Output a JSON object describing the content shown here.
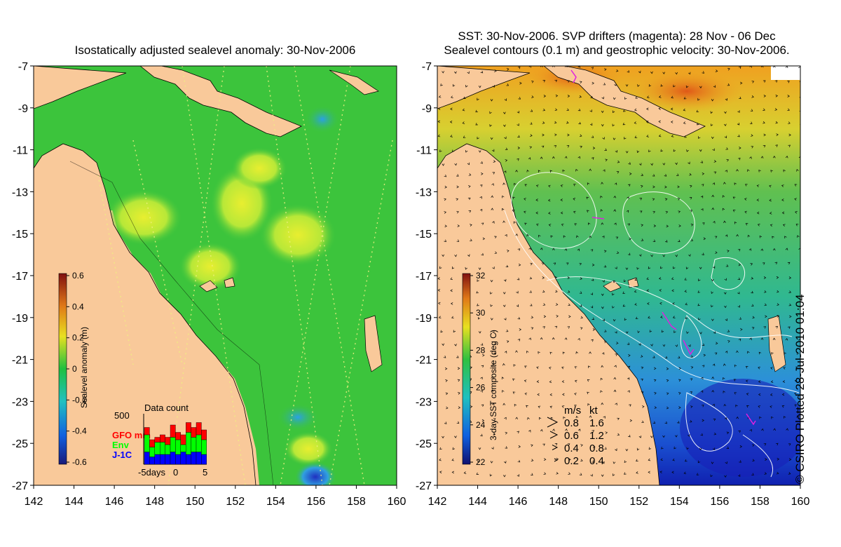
{
  "left_panel": {
    "title": "Isostatically adjusted sealevel anomaly: 30-Nov-2006",
    "y_ticks": [
      "-7",
      "-9",
      "-11",
      "-13",
      "-15",
      "-17",
      "-19",
      "-21",
      "-23",
      "-25",
      "-27"
    ],
    "x_ticks": [
      "142",
      "144",
      "146",
      "148",
      "150",
      "152",
      "154",
      "156",
      "158",
      "160"
    ],
    "colorbar": {
      "label": "Sealevel anomaly (m)",
      "ticks": [
        "0.6",
        "0.4",
        "0.2",
        "0",
        "-0.2",
        "-0.4",
        "-0.6"
      ]
    },
    "data_count": {
      "title": "Data count",
      "max_label": "500",
      "legend": [
        {
          "label": "GFO mm",
          "color": "#ff0000"
        },
        {
          "label": "Env",
          "color": "#00ff00"
        },
        {
          "label": "J-1C",
          "color": "#0000ff"
        }
      ],
      "x_labels": [
        "-5days",
        "0",
        "5"
      ],
      "bars": [
        {
          "j1c": 0.25,
          "env": 0.35,
          "gfo": 0.15
        },
        {
          "j1c": 0.15,
          "env": 0.2,
          "gfo": 0.15
        },
        {
          "j1c": 0.2,
          "env": 0.25,
          "gfo": 0.1
        },
        {
          "j1c": 0.2,
          "env": 0.25,
          "gfo": 0.15
        },
        {
          "j1c": 0.2,
          "env": 0.2,
          "gfo": 0.15
        },
        {
          "j1c": 0.25,
          "env": 0.3,
          "gfo": 0.25
        },
        {
          "j1c": 0.2,
          "env": 0.3,
          "gfo": 0.15
        },
        {
          "j1c": 0.25,
          "env": 0.15,
          "gfo": 0.2
        },
        {
          "j1c": 0.2,
          "env": 0.45,
          "gfo": 0.2
        },
        {
          "j1c": 0.25,
          "env": 0.3,
          "gfo": 0.2
        },
        {
          "j1c": 0.25,
          "env": 0.35,
          "gfo": 0.25
        },
        {
          "j1c": 0.2,
          "env": 0.3,
          "gfo": 0.2
        }
      ]
    }
  },
  "right_panel": {
    "title_line1": "SST: 30-Nov-2006. SVP drifters (magenta): 28 Nov - 06 Dec",
    "title_line2": "Sealevel contours (0.1 m) and geostrophic velocity: 30-Nov-2006.",
    "y_ticks": [
      "-7",
      "-9",
      "-11",
      "-13",
      "-15",
      "-17",
      "-19",
      "-21",
      "-23",
      "-25",
      "-27"
    ],
    "x_ticks": [
      "142",
      "144",
      "146",
      "148",
      "150",
      "152",
      "154",
      "156",
      "158",
      "160"
    ],
    "colorbar": {
      "label": "3-day SST composite (deg C)",
      "ticks": [
        "32",
        "30",
        "28",
        "26",
        "24",
        "22"
      ]
    },
    "velocity_legend": {
      "header_ms": "m/s",
      "header_kt": "kt",
      "rows": [
        {
          "ms": "0.8",
          "kt": "1.6"
        },
        {
          "ms": "0.6",
          "kt": "1.2"
        },
        {
          "ms": "0.4",
          "kt": "0.8"
        },
        {
          "ms": "0.2",
          "kt": "0.4"
        }
      ]
    }
  },
  "copyright": "© CSIRO Plotted 28-Jul-2010 01:04",
  "colors": {
    "land": "#f9c99a",
    "sla_ocean": "#3cc43c",
    "sla_anomaly": "#c8ec30",
    "sst_warm": "#f0a020",
    "sst_mid": "#30b860",
    "sst_cool": "#2090e0",
    "sst_cold": "#1030c0"
  }
}
